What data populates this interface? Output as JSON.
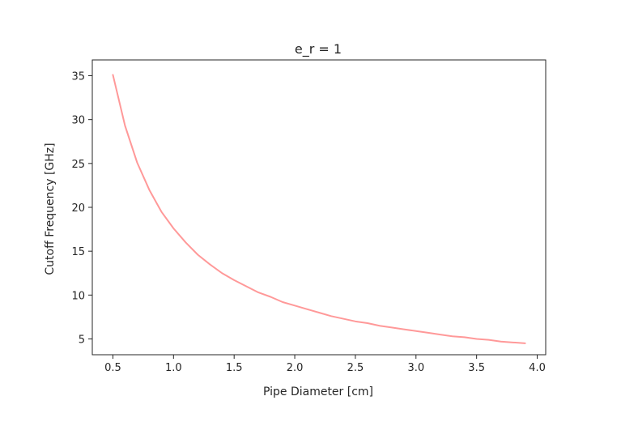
{
  "chart_data": {
    "type": "line",
    "title": "e_r = 1",
    "xlabel": "Pipe Diameter [cm]",
    "ylabel": "Cutoff Frequency [GHz]",
    "xlim": [
      0.33,
      4.07
    ],
    "ylim": [
      3.2,
      36.8
    ],
    "xticks": [
      0.5,
      1.0,
      1.5,
      2.0,
      2.5,
      3.0,
      3.5,
      4.0
    ],
    "xtick_labels": [
      "0.5",
      "1.0",
      "1.5",
      "2.0",
      "2.5",
      "3.0",
      "3.5",
      "4.0"
    ],
    "yticks": [
      5,
      10,
      15,
      20,
      25,
      30,
      35
    ],
    "ytick_labels": [
      "5",
      "10",
      "15",
      "20",
      "25",
      "30",
      "35"
    ],
    "grid": false,
    "series": [
      {
        "color": "#ff9999",
        "x": [
          0.5,
          0.6,
          0.7,
          0.8,
          0.9,
          1.0,
          1.1,
          1.2,
          1.3,
          1.4,
          1.5,
          1.6,
          1.7,
          1.8,
          1.9,
          2.0,
          2.1,
          2.2,
          2.3,
          2.4,
          2.5,
          2.6,
          2.7,
          2.8,
          2.9,
          3.0,
          3.1,
          3.2,
          3.3,
          3.4,
          3.5,
          3.6,
          3.7,
          3.8,
          3.9
        ],
        "y": [
          35.1,
          29.3,
          25.1,
          22.0,
          19.5,
          17.6,
          16.0,
          14.6,
          13.5,
          12.5,
          11.7,
          11.0,
          10.3,
          9.8,
          9.2,
          8.8,
          8.4,
          8.0,
          7.6,
          7.3,
          7.0,
          6.8,
          6.5,
          6.3,
          6.1,
          5.9,
          5.7,
          5.5,
          5.3,
          5.2,
          5.0,
          4.9,
          4.7,
          4.6,
          4.5
        ]
      }
    ]
  }
}
